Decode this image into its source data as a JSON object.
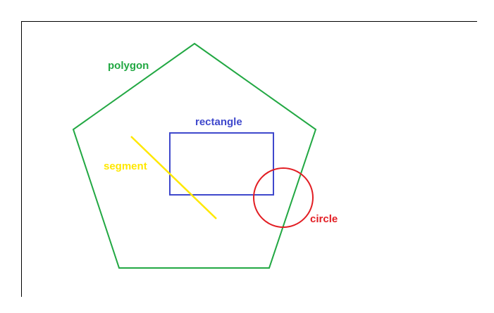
{
  "diagram": {
    "labels": {
      "polygon": "polygon",
      "rectangle": "rectangle",
      "segment": "segment",
      "circle": "circle"
    },
    "colors": {
      "frame": "#000000",
      "polygon": "#22a843",
      "rectangle": "#3f48cc",
      "segment": "#ffe800",
      "circle": "#e21d23",
      "background": "#ffffff"
    }
  }
}
